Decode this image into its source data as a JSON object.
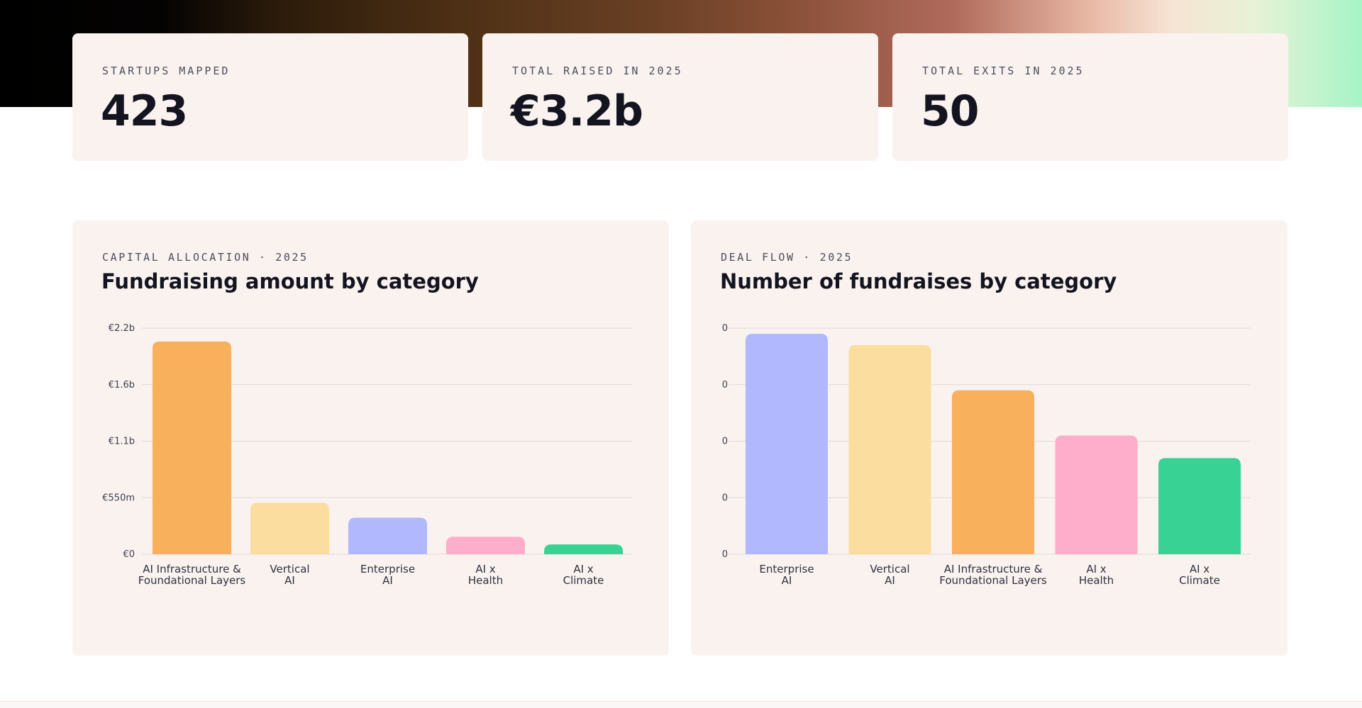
{
  "stats": [
    {
      "label": "STARTUPS MAPPED",
      "value": "423"
    },
    {
      "label": "TOTAL RAISED IN 2025",
      "value": "€3.2b"
    },
    {
      "label": "TOTAL EXITS IN 2025",
      "value": "50"
    }
  ],
  "charts": {
    "amount": {
      "eyebrow": "CAPITAL ALLOCATION · 2025",
      "title": "Fundraising amount by category"
    },
    "count": {
      "eyebrow": "DEAL FLOW · 2025",
      "title": "Number of fundraises by category"
    }
  },
  "chart_data": [
    {
      "type": "bar",
      "title": "Fundraising amount by category",
      "categories": [
        [
          "AI Infrastructure &",
          "Foundational Layers"
        ],
        [
          "Vertical",
          "AI"
        ],
        [
          "Enterprise",
          "AI"
        ],
        [
          "AI x",
          "Health"
        ],
        [
          "AI x",
          "Climate"
        ]
      ],
      "values": [
        2070,
        500,
        355,
        170,
        95
      ],
      "unit": "€m",
      "yticks": [
        "€0",
        "€550m",
        "€1.1b",
        "€1.6b",
        "€2.2b"
      ],
      "ylim": [
        0,
        2200
      ],
      "colors": [
        "#f8b05d",
        "#fadd9f",
        "#b1b8fd",
        "#feadca",
        "#38d294"
      ],
      "grid": true
    },
    {
      "type": "bar",
      "title": "Number of fundraises by category",
      "categories": [
        [
          "Enterprise",
          "AI"
        ],
        [
          "Vertical",
          "AI"
        ],
        [
          "AI Infrastructure &",
          "Foundational Layers"
        ],
        [
          "AI x",
          "Health"
        ],
        [
          "AI x",
          "Climate"
        ]
      ],
      "values": [
        0.975,
        0.925,
        0.725,
        0.525,
        0.425
      ],
      "yticks": [
        "0",
        "0",
        "0",
        "0",
        "0"
      ],
      "ylim": [
        0,
        1
      ],
      "colors": [
        "#b1b8fd",
        "#fadd9f",
        "#f8b05d",
        "#feadca",
        "#38d294"
      ],
      "grid": true
    }
  ],
  "colors": {
    "card_bg": "#faf2ef",
    "text": "#141421",
    "muted": "#4a4e5e",
    "grid": "#dedad8"
  }
}
